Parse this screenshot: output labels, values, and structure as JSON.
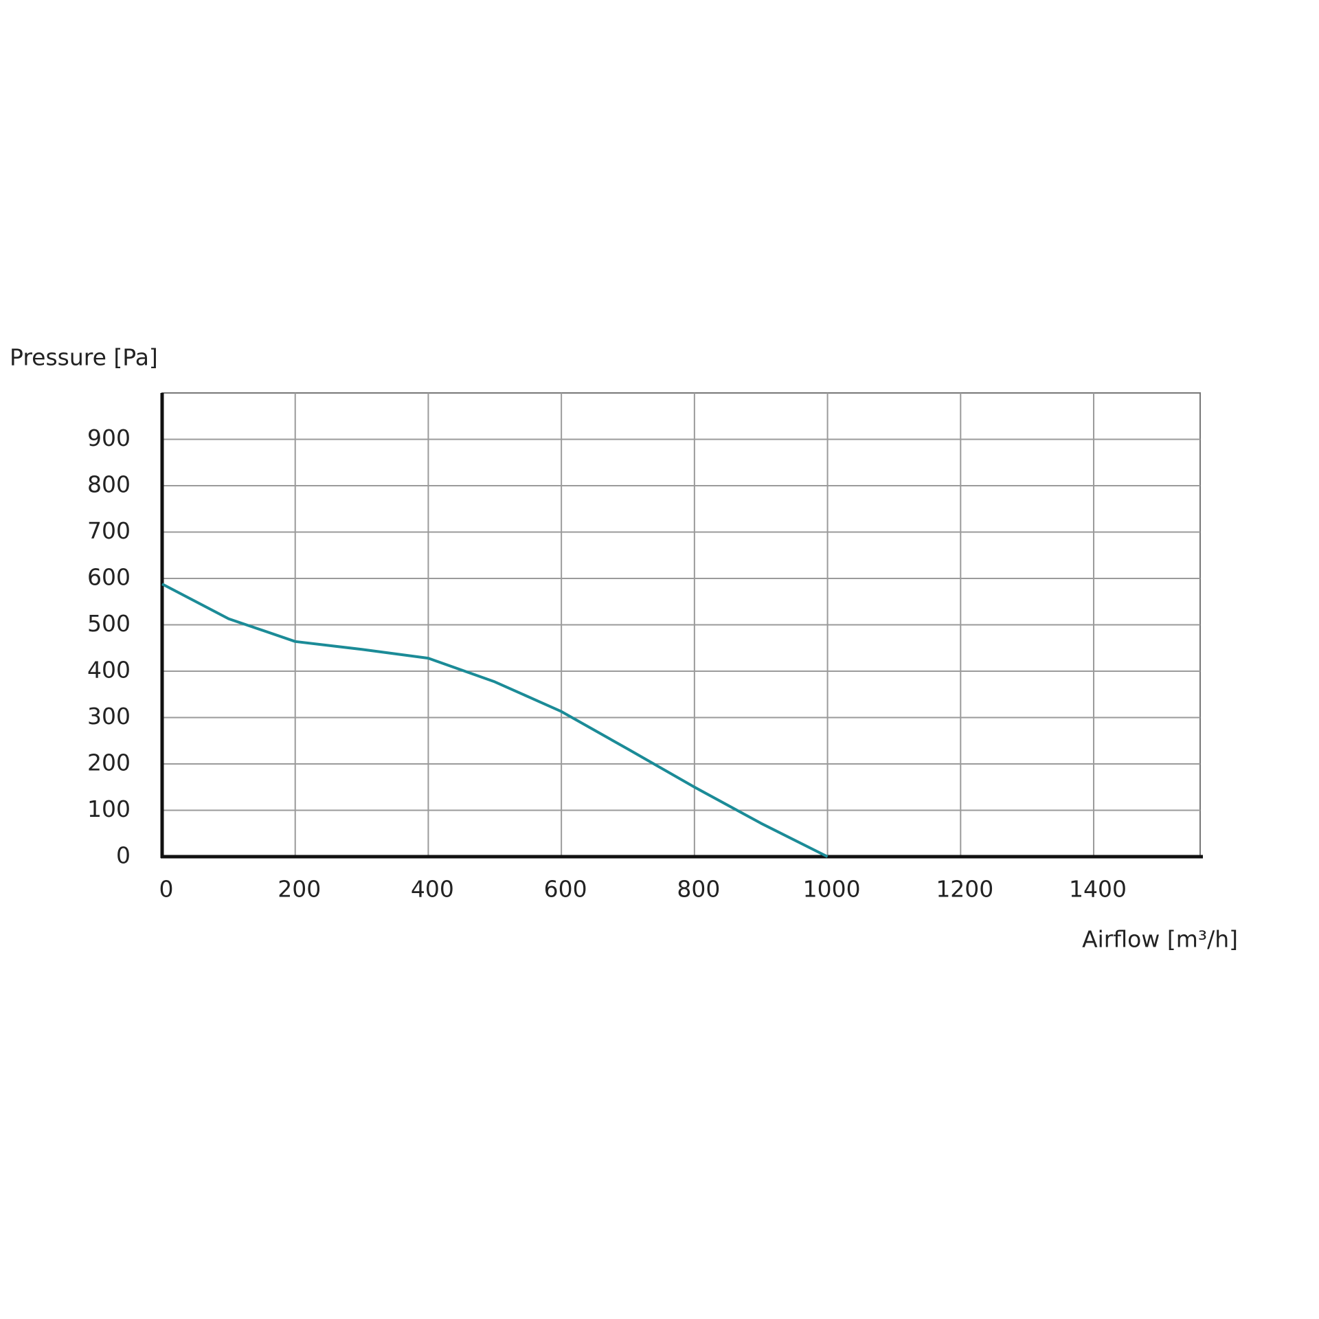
{
  "chart_data": {
    "type": "line",
    "y_label": "Pressure [Pa]",
    "x_label": "Airflow [m³/h]",
    "x": [
      0,
      100,
      200,
      300,
      400,
      500,
      600,
      700,
      800,
      900,
      1000
    ],
    "series": [
      {
        "color": "#1b8b97",
        "values": [
          588,
          513,
          464,
          447,
          428,
          377,
          313,
          232,
          150,
          72,
          0
        ]
      }
    ],
    "xlim": [
      0,
      1560
    ],
    "xticks": [
      0,
      200,
      400,
      600,
      800,
      1000,
      1200,
      1400
    ],
    "ylim": [
      0,
      1000
    ],
    "yticks": [
      0,
      100,
      200,
      300,
      400,
      500,
      600,
      700,
      800,
      900
    ],
    "grid": true
  }
}
